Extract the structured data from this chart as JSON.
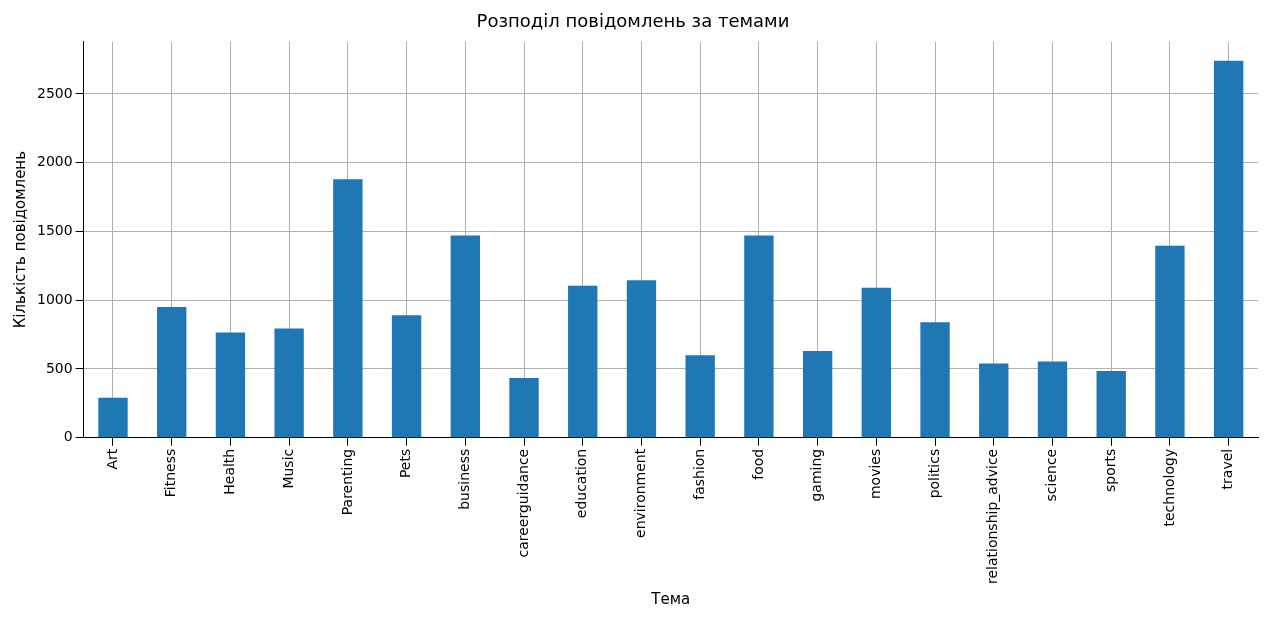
{
  "chart_data": {
    "type": "bar",
    "title": "Розподіл повідомлень за темами",
    "xlabel": "Тема",
    "ylabel": "Кількість повідомлень",
    "categories": [
      "Art",
      "Fitness",
      "Health",
      "Music",
      "Parenting",
      "Pets",
      "business",
      "careerguidance",
      "education",
      "environment",
      "fashion",
      "food",
      "gaming",
      "movies",
      "politics",
      "relationship_advice",
      "science",
      "sports",
      "technology",
      "travel"
    ],
    "values": [
      290,
      950,
      765,
      795,
      1880,
      890,
      1470,
      435,
      1105,
      1145,
      600,
      1470,
      630,
      1090,
      840,
      540,
      555,
      485,
      1395,
      2740
    ],
    "color": "#1f77b4",
    "ylim": [
      0,
      2880
    ],
    "yticks": [
      0,
      500,
      1000,
      1500,
      2000,
      2500
    ],
    "grid": true,
    "legend": false
  }
}
